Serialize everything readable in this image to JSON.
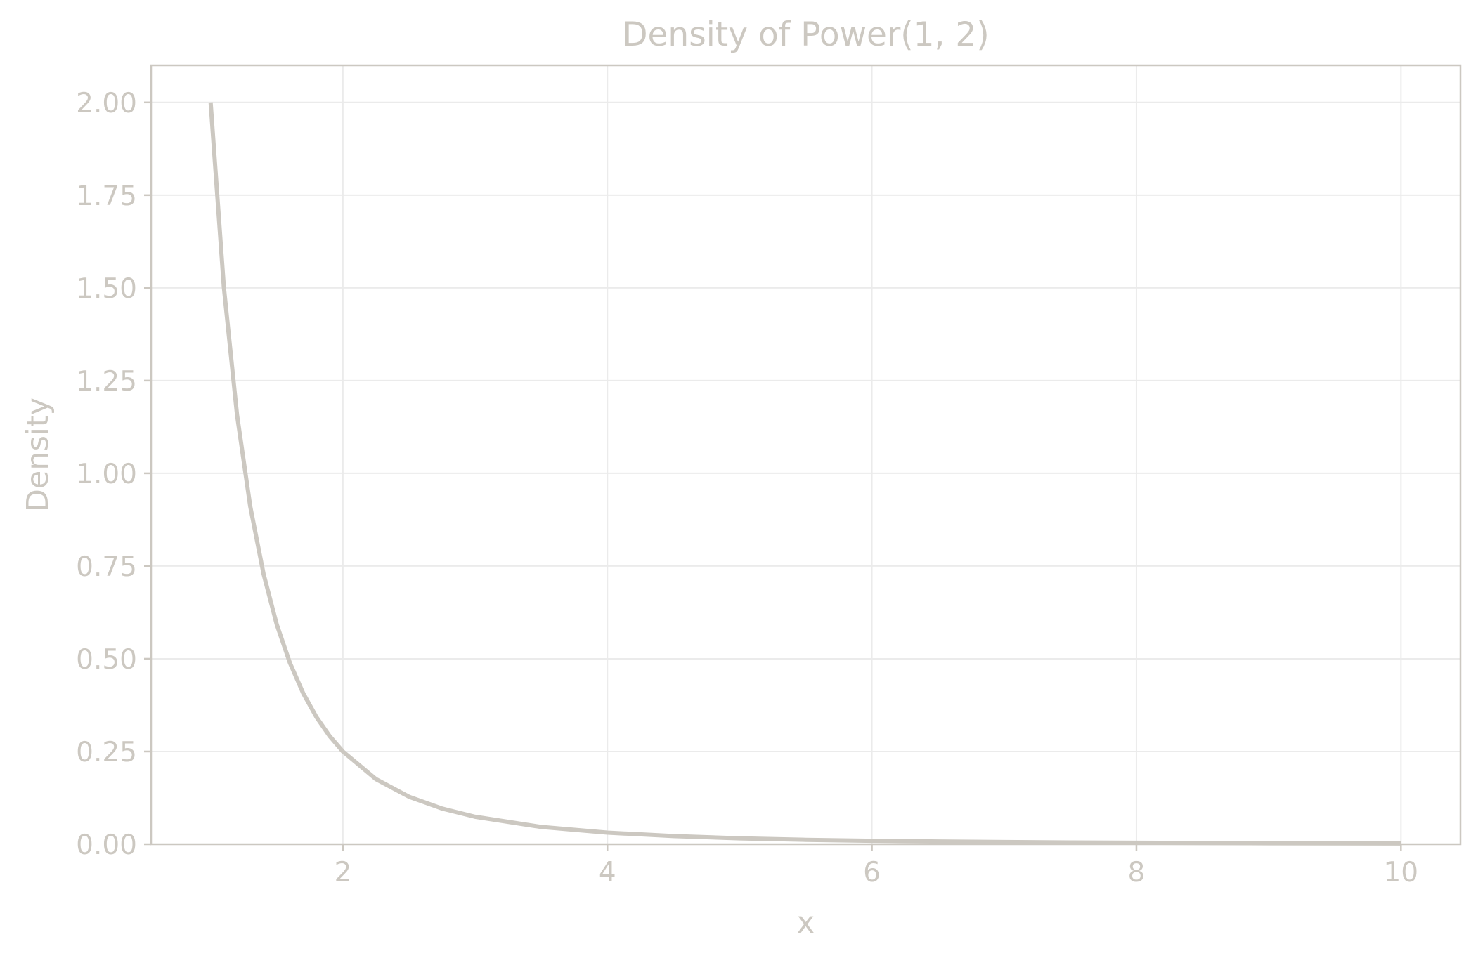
{
  "chart_data": {
    "type": "line",
    "title": "Density of Power(1, 2)",
    "xlabel": "x",
    "ylabel": "Density",
    "xlim": [
      0.55,
      10.45
    ],
    "ylim": [
      0,
      2.1
    ],
    "x_ticks": [
      2,
      4,
      6,
      8,
      10
    ],
    "x_tick_labels": [
      "2",
      "4",
      "6",
      "8",
      "10"
    ],
    "y_ticks": [
      0,
      0.25,
      0.5,
      0.75,
      1.0,
      1.25,
      1.5,
      1.75,
      2.0
    ],
    "y_tick_labels": [
      "0.00",
      "0.25",
      "0.50",
      "0.75",
      "1.00",
      "1.25",
      "1.50",
      "1.75",
      "2.00"
    ],
    "grid": true,
    "series": [
      {
        "color": "#ccc8c1",
        "x": [
          1.0,
          1.1,
          1.2,
          1.3,
          1.4,
          1.5,
          1.6,
          1.7,
          1.8,
          1.9,
          2.0,
          2.25,
          2.5,
          2.75,
          3.0,
          3.5,
          4.0,
          4.5,
          5.0,
          5.5,
          6.0,
          6.5,
          7.0,
          7.5,
          8.0,
          8.5,
          9.0,
          9.5,
          10.0
        ],
        "y": [
          2.0,
          1.5026,
          1.1574,
          0.9104,
          0.7289,
          0.5926,
          0.4883,
          0.4071,
          0.3429,
          0.2916,
          0.25,
          0.1756,
          0.128,
          0.0962,
          0.0741,
          0.0466,
          0.0313,
          0.0219,
          0.016,
          0.012,
          0.0093,
          0.0073,
          0.0058,
          0.0047,
          0.0039,
          0.0033,
          0.0027,
          0.0023,
          0.002
        ]
      }
    ],
    "colors": {
      "text": "#ccc8c1",
      "axis": "#ccc8c1",
      "grid": "#ebebeb",
      "background": "#ffffff"
    }
  }
}
